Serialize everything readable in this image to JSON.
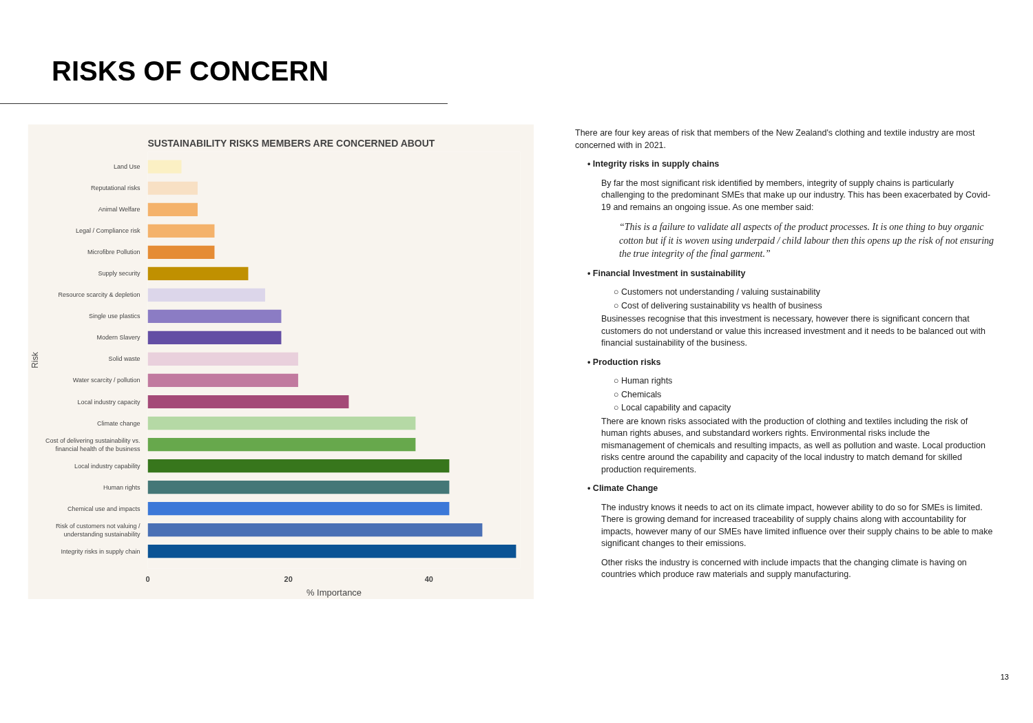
{
  "chart_data": {
    "type": "bar",
    "orientation": "horizontal",
    "title": "RISKS OF CONCERN",
    "subtitle": "SUSTAINABILITY RISKS MEMBERS ARE CONCERNED ABOUT",
    "xlabel": "% Importance",
    "ylabel": "Risk",
    "categories": [
      "Land Use",
      "Reputational risks",
      "Animal Welfare",
      "Legal / Compliance risk",
      "Microfibre Pollution",
      "Supply security",
      "Resource scarcity & depletion",
      "Single use plastics",
      "Modern Slavery",
      "Solid waste",
      "Water scarcity / pollution",
      "Local industry capacity",
      "Climate change",
      "Cost of delivering sustainability vs.\nfinancial health of the business",
      "Local industry capability",
      "Human rights",
      "Chemical use and impacts",
      "Risk of customers not valuing /\nunderstanding sustainability",
      "Integrity risks in supply chain"
    ],
    "values": [
      4.8,
      7.1,
      7.1,
      9.5,
      9.5,
      14.3,
      16.7,
      19.0,
      19.0,
      21.4,
      21.4,
      28.6,
      38.1,
      38.1,
      42.9,
      42.9,
      42.9,
      47.6,
      52.4
    ],
    "colors": [
      "#fbf0c4",
      "#f8e0c4",
      "#f4b26b",
      "#f4b26b",
      "#e58c35",
      "#c09000",
      "#dcd6ea",
      "#8b7cc4",
      "#634ea4",
      "#e9d0dc",
      "#c17a9f",
      "#a44a77",
      "#b5d9a5",
      "#67a84c",
      "#37761c",
      "#447777",
      "#3c78d8",
      "#4a70b5",
      "#0b5394"
    ],
    "xlim": [
      0,
      53
    ],
    "xticks": [
      0,
      20,
      40
    ],
    "annotations": [
      "There are  four key areas of risk that members of the New Zealand's clothing and textile industry are most concerned with in 2021.",
      "• Integrity risks in supply chains",
      "By far the most significant risk identified by members, integrity of supply chains is particularly challenging to the predominant SMEs that make up our industry. This has been exacerbated by Covid-19 and remains an ongoing issue. As one member said:",
      "“This is a failure to validate all aspects of the product processes.  It is one thing to buy organic cotton but if it is woven using underpaid / child labour then this opens up the risk of not ensuring the true integrity of the final garment.”",
      "• Financial Investment in sustainability",
      "○ Customers not understanding / valuing sustainability",
      "○ Cost of delivering sustainability vs health of business",
      "Businesses recognise that this investment is necessary, however there is significant concern that customers do not understand or value this increased investment and it needs to be balanced out with financial sustainability of the business.",
      "• Production risks",
      "○ Human rights",
      "○ Chemicals",
      "○ Local capability and capacity",
      "There are known risks associated with the production of clothing and textiles including the risk of human rights abuses, and substandard workers rights. Environmental risks include the mismanagement of chemicals and resulting impacts, as well as pollution and waste. Local production risks centre around the capability and capacity of the local industry to match demand for skilled production requirements.",
      "• Climate Change",
      "The industry knows it needs to act on its climate impact, however ability to do so for SMEs is limited. There is growing demand for increased traceability of supply chains along with accountability for impacts, however many of our SMEs have limited influence over their supply chains to be able to make significant changes to their emissions.",
      "Other risks the industry is concerned with include impacts that the changing climate is having on countries which produce raw materials and supply manufacturing.",
      "13"
    ]
  }
}
